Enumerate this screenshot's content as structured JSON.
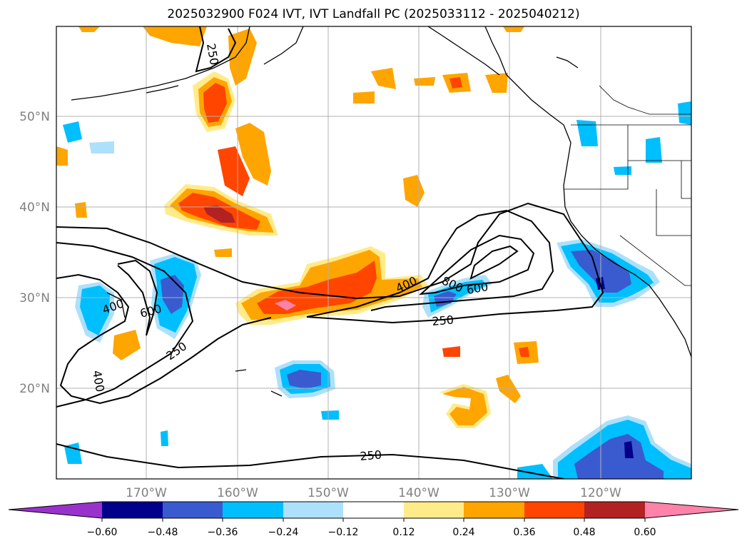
{
  "title": "2025032900 F024 IVT, IVT Landfall PC (2025033112 - 2025040212)",
  "axes": {
    "lat_labels": [
      "50°N",
      "40°N",
      "30°N",
      "20°N"
    ],
    "lon_labels": [
      "170°W",
      "160°W",
      "150°W",
      "140°W",
      "130°W",
      "120°W"
    ]
  },
  "colorbar": {
    "colors": [
      "#9932cc",
      "#00008b",
      "#3a5bd0",
      "#00bfff",
      "#ade0fb",
      "#ffffff",
      "#ffeb8a",
      "#ffa500",
      "#ff4500",
      "#b22222",
      "#ff82ab"
    ],
    "tick_labels": [
      "−0.60",
      "−0.48",
      "−0.36",
      "−0.24",
      "−0.12",
      "0.12",
      "0.24",
      "0.36",
      "0.48",
      "0.60"
    ]
  },
  "contour_labels": [
    "250",
    "400",
    "600",
    "400",
    "600",
    "250",
    "800",
    "250",
    "400",
    "250"
  ]
}
